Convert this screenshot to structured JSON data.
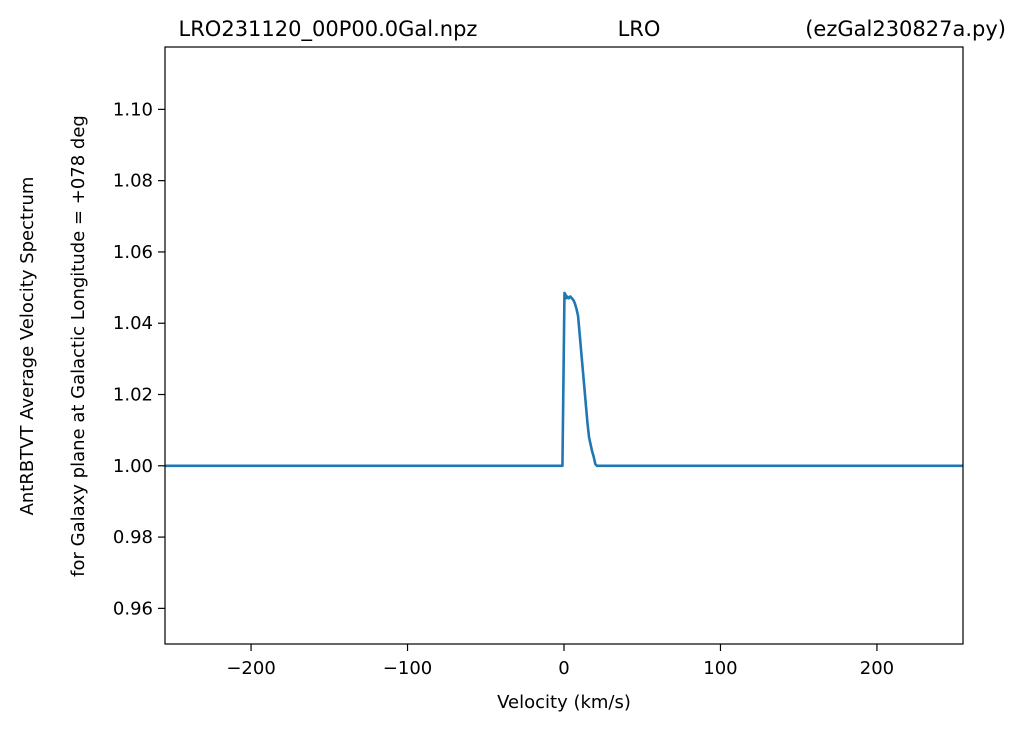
{
  "chart_data": {
    "type": "line",
    "title_left": "LRO231120_00P00.0Gal.npz",
    "title_center": "LRO",
    "title_right": "(ezGal230827a.py)",
    "xlabel": "Velocity (km/s)",
    "ylabel_line1": "AntRBTVT Average Velocity Spectrum",
    "ylabel_line2": "for Galaxy plane at Galactic Longitude = +078 deg",
    "xlim": [
      -255,
      255
    ],
    "ylim": [
      0.95,
      1.1175
    ],
    "xticks": [
      -200,
      -100,
      0,
      100,
      200
    ],
    "xtick_labels": [
      "−200",
      "−100",
      "0",
      "100",
      "200"
    ],
    "yticks": [
      0.96,
      0.98,
      1.0,
      1.02,
      1.04,
      1.06,
      1.08,
      1.1
    ],
    "ytick_labels": [
      "0.96",
      "0.98",
      "1.00",
      "1.02",
      "1.04",
      "1.06",
      "1.08",
      "1.10"
    ],
    "grid": false,
    "line_color": "#1f77b4",
    "series": [
      {
        "x": [
          -255,
          -1,
          0.3,
          1.0,
          1.5,
          2.0,
          3.0,
          4.0,
          5.0,
          6.0,
          7.0,
          8.0,
          9.0,
          10.0,
          11.0,
          12.0,
          13.0,
          14.0,
          15.0,
          16.0,
          17.0,
          18.0,
          19.0,
          20.0,
          21.0,
          22.0,
          24.0,
          255
        ],
        "y": [
          1.0,
          1.0,
          1.0485,
          1.048,
          1.047,
          1.0475,
          1.047,
          1.0475,
          1.047,
          1.0465,
          1.0455,
          1.044,
          1.042,
          1.037,
          1.032,
          1.027,
          1.022,
          1.017,
          1.012,
          1.008,
          1.006,
          1.004,
          1.0025,
          1.0005,
          1.0,
          1.0,
          1.0,
          1.0
        ]
      }
    ]
  }
}
